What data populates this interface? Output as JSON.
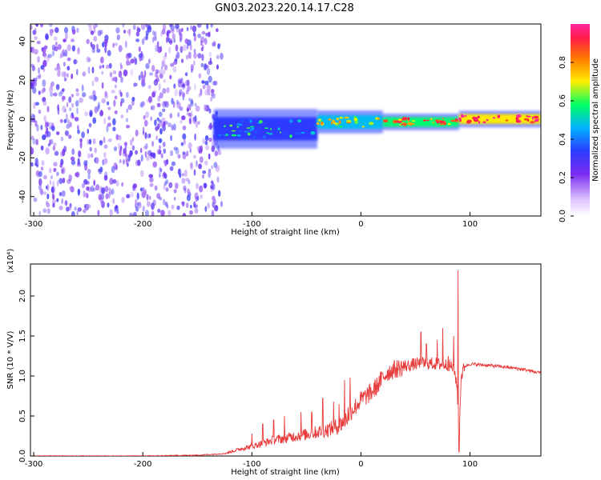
{
  "title": "GN03.2023.220.14.17.C28",
  "chart_data": [
    {
      "type": "heatmap",
      "xlabel": "Height of straight line (km)",
      "ylabel": "Frequency (Hz)",
      "xlim": [
        -303,
        165
      ],
      "ylim": [
        -50,
        49
      ],
      "xticks": [
        -300,
        -200,
        -100,
        0,
        100
      ],
      "yticks": [
        -40,
        -20,
        0,
        20,
        40
      ],
      "colorbar": {
        "label": "Normalized spectral amplitude",
        "range": [
          0.0,
          1.0
        ],
        "ticks": [
          "0.0",
          "0.2",
          "0.4",
          "0.6",
          "0.8"
        ],
        "colors": [
          "#e9d9ff",
          "#7a2cf0",
          "#2a3cff",
          "#00b4ff",
          "#00ff66",
          "#ffee00",
          "#ff7a00",
          "#ff1a4a",
          "#ff2aa0"
        ]
      },
      "regions": [
        {
          "x": [
            -303,
            -135
          ],
          "freq_range": [
            -50,
            49
          ],
          "amplitude": 0.08,
          "pattern": "broadband speckle"
        },
        {
          "x": [
            -135,
            -40
          ],
          "freq_center": -5,
          "freq_halfwidth": 6,
          "amplitude": 0.35
        },
        {
          "x": [
            -40,
            20
          ],
          "freq_center": -1.5,
          "freq_halfwidth": 3.5,
          "amplitude": 0.55
        },
        {
          "x": [
            20,
            90
          ],
          "freq_center": -1.5,
          "freq_halfwidth": 2.5,
          "amplitude": 0.7
        },
        {
          "x": [
            90,
            165
          ],
          "freq_center": 0,
          "freq_halfwidth": 2.5,
          "amplitude": 0.9
        }
      ]
    },
    {
      "type": "line",
      "xlabel": "Height of straight line (km)",
      "ylabel": "SNR (10 * V/V)",
      "yscale_note": "(x10⁴)",
      "xlim": [
        -303,
        165
      ],
      "ylim": [
        0.0,
        2.4
      ],
      "xticks": [
        -300,
        -200,
        -100,
        0,
        100
      ],
      "yticks": [
        "0.0",
        "0.5",
        "1.0",
        "1.5",
        "2.0"
      ],
      "color": "#e83a3a",
      "series": [
        {
          "points": [
            [
              -303,
              0.0
            ],
            [
              -250,
              0.0
            ],
            [
              -200,
              0.0
            ],
            [
              -150,
              0.01
            ],
            [
              -125,
              0.03
            ],
            [
              -110,
              0.09
            ],
            [
              -100,
              0.12
            ],
            [
              -90,
              0.16
            ],
            [
              -80,
              0.2
            ],
            [
              -70,
              0.22
            ],
            [
              -60,
              0.25
            ],
            [
              -50,
              0.27
            ],
            [
              -40,
              0.3
            ],
            [
              -30,
              0.33
            ],
            [
              -20,
              0.38
            ],
            [
              -15,
              0.45
            ],
            [
              -10,
              0.55
            ],
            [
              -5,
              0.62
            ],
            [
              0,
              0.7
            ],
            [
              5,
              0.75
            ],
            [
              10,
              0.8
            ],
            [
              15,
              0.88
            ],
            [
              20,
              0.98
            ],
            [
              25,
              1.05
            ],
            [
              30,
              1.08
            ],
            [
              40,
              1.12
            ],
            [
              50,
              1.15
            ],
            [
              60,
              1.16
            ],
            [
              70,
              1.15
            ],
            [
              80,
              1.14
            ],
            [
              85,
              1.1
            ],
            [
              88,
              0.9
            ],
            [
              90,
              0.3
            ],
            [
              92,
              1.0
            ],
            [
              95,
              1.12
            ],
            [
              100,
              1.15
            ],
            [
              120,
              1.13
            ],
            [
              140,
              1.1
            ],
            [
              150,
              1.08
            ],
            [
              160,
              1.05
            ],
            [
              165,
              1.04
            ]
          ],
          "spikes": [
            [
              -100,
              0.28
            ],
            [
              -90,
              0.4
            ],
            [
              -80,
              0.45
            ],
            [
              -70,
              0.5
            ],
            [
              -55,
              0.55
            ],
            [
              -45,
              0.55
            ],
            [
              -35,
              0.72
            ],
            [
              -25,
              0.68
            ],
            [
              -20,
              0.65
            ],
            [
              -15,
              0.95
            ],
            [
              -10,
              0.98
            ],
            [
              55,
              1.55
            ],
            [
              60,
              1.4
            ],
            [
              70,
              1.45
            ],
            [
              75,
              1.6
            ],
            [
              80,
              1.25
            ],
            [
              85,
              1.5
            ],
            [
              89,
              2.32
            ],
            [
              90,
              0.05
            ]
          ]
        }
      ]
    }
  ]
}
